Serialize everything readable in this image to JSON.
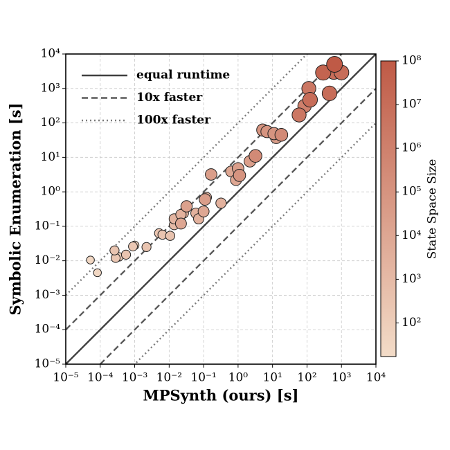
{
  "chart_data": {
    "type": "scatter",
    "xlabel": "MPSynth (ours) [s]",
    "ylabel": "Symbolic Enumeration [s]",
    "colorbar_label": "State Space Size",
    "log_x": true,
    "log_y": true,
    "grid": true,
    "legend": "upper left",
    "xlim": [
      1e-05,
      10000
    ],
    "ylim": [
      1e-05,
      10000
    ],
    "xticks": [
      {
        "value": 1e-05,
        "label": "10⁻⁵"
      },
      {
        "value": 0.0001,
        "label": "10⁻⁴"
      },
      {
        "value": 0.001,
        "label": "10⁻³"
      },
      {
        "value": 0.01,
        "label": "10⁻²"
      },
      {
        "value": 0.1,
        "label": "10⁻¹"
      },
      {
        "value": 1,
        "label": "10⁰"
      },
      {
        "value": 10,
        "label": "10¹"
      },
      {
        "value": 100,
        "label": "10²"
      },
      {
        "value": 1000,
        "label": "10³"
      },
      {
        "value": 10000,
        "label": "10⁴"
      }
    ],
    "yticks": [
      {
        "value": 1e-05,
        "label": "10⁻⁵"
      },
      {
        "value": 0.0001,
        "label": "10⁻⁴"
      },
      {
        "value": 0.001,
        "label": "10⁻³"
      },
      {
        "value": 0.01,
        "label": "10⁻²"
      },
      {
        "value": 0.1,
        "label": "10⁻¹"
      },
      {
        "value": 1,
        "label": "10⁰"
      },
      {
        "value": 10,
        "label": "10¹"
      },
      {
        "value": 100,
        "label": "10²"
      },
      {
        "value": 1000,
        "label": "10³"
      },
      {
        "value": 10000,
        "label": "10⁴"
      }
    ],
    "clim": [
      17,
      100000000
    ],
    "cticks": [
      {
        "value": 100,
        "label": "10²"
      },
      {
        "value": 1000,
        "label": "10³"
      },
      {
        "value": 10000,
        "label": "10⁴"
      },
      {
        "value": 100000,
        "label": "10⁵"
      },
      {
        "value": 1000000,
        "label": "10⁶"
      },
      {
        "value": 10000000,
        "label": "10⁷"
      },
      {
        "value": 100000000,
        "label": "10⁸"
      }
    ],
    "colormap": [
      "#f3dcc8",
      "#bf5a46"
    ],
    "reference_lines": [
      {
        "name": "equal runtime",
        "style": "solid",
        "color": "#404040",
        "factors": [
          1
        ]
      },
      {
        "name": "10x faster",
        "style": "dashed",
        "color": "#5a5a5a",
        "factors": [
          10,
          0.1
        ]
      },
      {
        "name": "100x faster",
        "style": "dotted",
        "color": "#7a7a7a",
        "factors": [
          100,
          0.01
        ]
      }
    ],
    "points": {
      "x": [
        5.2e-05,
        8.3e-05,
        0.00026,
        0.00028,
        0.00035,
        0.00056,
        0.00089,
        0.001,
        0.0022,
        0.0051,
        0.0064,
        0.0107,
        0.014,
        0.014,
        0.022,
        0.022,
        0.026,
        0.022,
        0.032,
        0.06,
        0.072,
        0.1,
        0.12,
        0.11,
        0.165,
        0.32,
        0.63,
        0.87,
        1.0,
        1.1,
        2.2,
        3.2,
        5.2,
        6.9,
        11,
        12.8,
        18,
        59,
        85,
        113,
        123,
        295,
        450,
        600,
        630,
        1000
      ],
      "y": [
        0.0105,
        0.0045,
        0.02,
        0.012,
        0.013,
        0.015,
        0.026,
        0.028,
        0.025,
        0.063,
        0.057,
        0.053,
        0.165,
        0.11,
        0.125,
        0.22,
        0.24,
        0.12,
        0.38,
        0.24,
        0.165,
        0.27,
        0.69,
        0.6,
        3.2,
        0.47,
        3.9,
        2.2,
        4.8,
        3.0,
        7.7,
        11,
        62,
        56,
        49,
        37,
        45,
        170,
        310,
        1000,
        470,
        2900,
        720,
        3000,
        5000,
        2900
      ],
      "state_space_size": [
        30,
        30,
        300,
        200,
        100,
        300,
        200,
        100,
        300,
        300,
        300,
        400,
        2000,
        1000,
        3000,
        3000,
        2000,
        10000,
        20000,
        3000,
        3000,
        10000,
        3000,
        30000,
        30000,
        3000,
        10000,
        10000,
        30000,
        100000,
        30000,
        300000,
        100000,
        100000,
        100000,
        30000,
        300000,
        3000000,
        1000000,
        3000000,
        10000000,
        30000000,
        10000000,
        10000000,
        100000000,
        10000000
      ]
    }
  }
}
